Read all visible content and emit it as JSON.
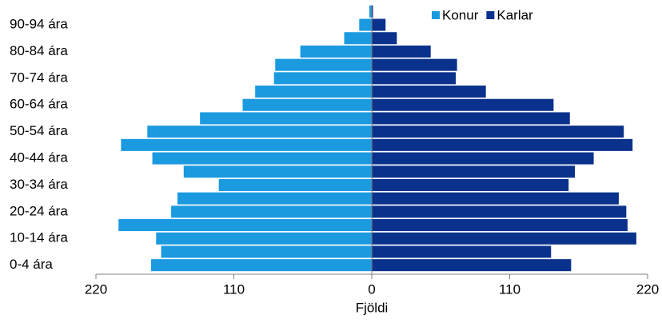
{
  "chart_data": {
    "type": "pyramid",
    "categories": [
      "0-4 ára",
      null,
      "10-14 ára",
      null,
      "20-24 ára",
      null,
      "30-34 ára",
      null,
      "40-44 ára",
      null,
      "50-54 ára",
      null,
      "60-64 ára",
      null,
      "70-74 ára",
      null,
      "80-84 ára",
      null,
      "90-94 ára",
      null
    ],
    "series": [
      {
        "name": "Konur",
        "color": "#1b9ae0",
        "values": [
          -176,
          -168,
          -172,
          -202,
          -160,
          -155,
          -122,
          -150,
          -175,
          -200,
          -179,
          -137,
          -103,
          -93,
          -78,
          -77,
          -57,
          -22,
          -10,
          -2
        ]
      },
      {
        "name": "Karlar",
        "color": "#0a328c",
        "values": [
          159,
          143,
          211,
          204,
          203,
          197,
          157,
          162,
          177,
          208,
          201,
          158,
          145,
          91,
          67,
          68,
          47,
          20,
          11,
          1
        ]
      }
    ],
    "xlabel": "Fjöldi",
    "xlim": [
      -220,
      220
    ],
    "xticks": [
      {
        "value": -220,
        "label": "220"
      },
      {
        "value": -110,
        "label": "110"
      },
      0,
      110,
      220
    ],
    "legend": "top-right"
  }
}
